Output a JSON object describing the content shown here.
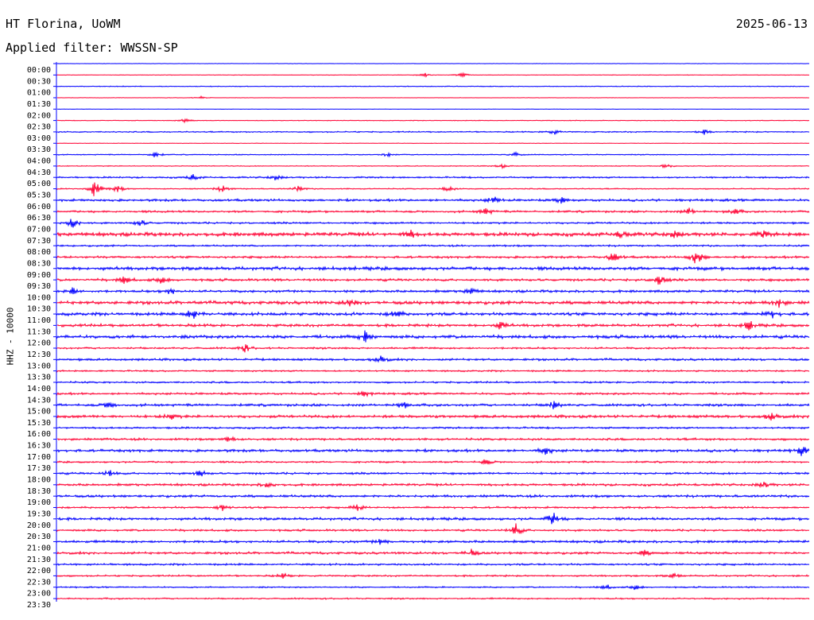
{
  "header": {
    "station": "HT Florina, UoWM",
    "date": "2025-06-13",
    "filter_label": "Applied filter:",
    "filter_name": "WWSSN-SP",
    "channel": "HHZ - 10000"
  },
  "colors": {
    "trace_a": "#0000ff",
    "trace_b": "#ff0033",
    "axis": "#0000ff",
    "text": "#000000"
  },
  "chart_data": {
    "type": "helicorder",
    "ylabel": "HHZ - 10000",
    "row_interval_minutes": 30,
    "row_labels": [
      "00:00",
      "00:30",
      "01:00",
      "01:30",
      "02:00",
      "02:30",
      "03:00",
      "03:30",
      "04:00",
      "04:30",
      "05:00",
      "05:30",
      "06:00",
      "06:30",
      "07:00",
      "07:30",
      "08:00",
      "08:30",
      "09:00",
      "09:30",
      "10:00",
      "10:30",
      "11:00",
      "11:30",
      "12:00",
      "12:30",
      "13:00",
      "13:30",
      "14:00",
      "14:30",
      "15:00",
      "15:30",
      "16:00",
      "16:30",
      "17:00",
      "17:30",
      "18:00",
      "18:30",
      "19:00",
      "19:30",
      "20:00",
      "20:30",
      "21:00",
      "21:30",
      "22:00",
      "22:30",
      "23:00",
      "23:30"
    ],
    "trace_colors": [
      "#0000ff",
      "#ff0033"
    ],
    "noise_level": [
      0.3,
      0.4,
      0.6,
      0.3,
      0.2,
      0.5,
      0.9,
      0.4,
      0.7,
      0.6,
      1.2,
      0.8,
      1.7,
      1.5,
      1.4,
      2.6,
      1.3,
      1.6,
      2.4,
      1.8,
      1.8,
      2.4,
      2.2,
      2.0,
      2.3,
      1.4,
      1.6,
      1.2,
      1.3,
      1.5,
      1.8,
      2.0,
      1.4,
      1.6,
      1.9,
      1.3,
      1.5,
      1.7,
      1.8,
      1.4,
      1.9,
      1.5,
      1.8,
      1.7,
      1.4,
      1.2,
      1.0,
      1.1
    ],
    "events": [
      {
        "row": 1,
        "t": 0.49,
        "amp": 3
      },
      {
        "row": 1,
        "t": 0.54,
        "amp": 3
      },
      {
        "row": 3,
        "t": 0.19,
        "amp": 2
      },
      {
        "row": 5,
        "t": 0.17,
        "amp": 3
      },
      {
        "row": 6,
        "t": 0.66,
        "amp": 4
      },
      {
        "row": 6,
        "t": 0.86,
        "amp": 3
      },
      {
        "row": 8,
        "t": 0.13,
        "amp": 4
      },
      {
        "row": 8,
        "t": 0.44,
        "amp": 3
      },
      {
        "row": 8,
        "t": 0.61,
        "amp": 3
      },
      {
        "row": 9,
        "t": 0.59,
        "amp": 3
      },
      {
        "row": 9,
        "t": 0.81,
        "amp": 3
      },
      {
        "row": 10,
        "t": 0.18,
        "amp": 4
      },
      {
        "row": 10,
        "t": 0.29,
        "amp": 4
      },
      {
        "row": 11,
        "t": 0.05,
        "amp": 12
      },
      {
        "row": 11,
        "t": 0.08,
        "amp": 5
      },
      {
        "row": 11,
        "t": 0.22,
        "amp": 5
      },
      {
        "row": 11,
        "t": 0.32,
        "amp": 4
      },
      {
        "row": 11,
        "t": 0.52,
        "amp": 4
      },
      {
        "row": 12,
        "t": 0.58,
        "amp": 5
      },
      {
        "row": 12,
        "t": 0.67,
        "amp": 4
      },
      {
        "row": 13,
        "t": 0.57,
        "amp": 5
      },
      {
        "row": 13,
        "t": 0.84,
        "amp": 5
      },
      {
        "row": 13,
        "t": 0.9,
        "amp": 5
      },
      {
        "row": 14,
        "t": 0.02,
        "amp": 8
      },
      {
        "row": 14,
        "t": 0.11,
        "amp": 5
      },
      {
        "row": 15,
        "t": 0.47,
        "amp": 5
      },
      {
        "row": 15,
        "t": 0.75,
        "amp": 5
      },
      {
        "row": 15,
        "t": 0.82,
        "amp": 5
      },
      {
        "row": 15,
        "t": 0.94,
        "amp": 4
      },
      {
        "row": 17,
        "t": 0.74,
        "amp": 7
      },
      {
        "row": 17,
        "t": 0.85,
        "amp": 11
      },
      {
        "row": 19,
        "t": 0.09,
        "amp": 6
      },
      {
        "row": 19,
        "t": 0.14,
        "amp": 5
      },
      {
        "row": 19,
        "t": 0.8,
        "amp": 7
      },
      {
        "row": 20,
        "t": 0.02,
        "amp": 5
      },
      {
        "row": 20,
        "t": 0.15,
        "amp": 5
      },
      {
        "row": 20,
        "t": 0.55,
        "amp": 5
      },
      {
        "row": 21,
        "t": 0.39,
        "amp": 5
      },
      {
        "row": 21,
        "t": 0.96,
        "amp": 5
      },
      {
        "row": 22,
        "t": 0.18,
        "amp": 8
      },
      {
        "row": 22,
        "t": 0.45,
        "amp": 6
      },
      {
        "row": 22,
        "t": 0.95,
        "amp": 5
      },
      {
        "row": 23,
        "t": 0.59,
        "amp": 5
      },
      {
        "row": 23,
        "t": 0.92,
        "amp": 6
      },
      {
        "row": 24,
        "t": 0.41,
        "amp": 7
      },
      {
        "row": 25,
        "t": 0.25,
        "amp": 5
      },
      {
        "row": 26,
        "t": 0.43,
        "amp": 5
      },
      {
        "row": 29,
        "t": 0.41,
        "amp": 4
      },
      {
        "row": 30,
        "t": 0.07,
        "amp": 5
      },
      {
        "row": 30,
        "t": 0.46,
        "amp": 5
      },
      {
        "row": 30,
        "t": 0.66,
        "amp": 6
      },
      {
        "row": 31,
        "t": 0.15,
        "amp": 5
      },
      {
        "row": 31,
        "t": 0.95,
        "amp": 5
      },
      {
        "row": 33,
        "t": 0.23,
        "amp": 4
      },
      {
        "row": 34,
        "t": 0.65,
        "amp": 5
      },
      {
        "row": 34,
        "t": 0.99,
        "amp": 6
      },
      {
        "row": 35,
        "t": 0.57,
        "amp": 4
      },
      {
        "row": 36,
        "t": 0.07,
        "amp": 5
      },
      {
        "row": 36,
        "t": 0.19,
        "amp": 5
      },
      {
        "row": 37,
        "t": 0.28,
        "amp": 4
      },
      {
        "row": 37,
        "t": 0.94,
        "amp": 4
      },
      {
        "row": 39,
        "t": 0.22,
        "amp": 4
      },
      {
        "row": 39,
        "t": 0.4,
        "amp": 4
      },
      {
        "row": 40,
        "t": 0.66,
        "amp": 9
      },
      {
        "row": 41,
        "t": 0.61,
        "amp": 9
      },
      {
        "row": 42,
        "t": 0.43,
        "amp": 4
      },
      {
        "row": 43,
        "t": 0.55,
        "amp": 5
      },
      {
        "row": 43,
        "t": 0.78,
        "amp": 4
      },
      {
        "row": 45,
        "t": 0.3,
        "amp": 3
      },
      {
        "row": 45,
        "t": 0.82,
        "amp": 3
      },
      {
        "row": 46,
        "t": 0.73,
        "amp": 4
      },
      {
        "row": 46,
        "t": 0.77,
        "amp": 4
      }
    ]
  }
}
